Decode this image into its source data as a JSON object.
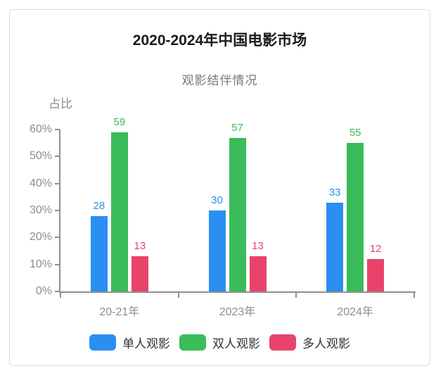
{
  "chart_data": {
    "type": "bar",
    "title": "2020-2024年中国电影市场",
    "subtitle": "观影结伴情况",
    "ylabel": "占比",
    "xlabel": "",
    "categories": [
      "20-21年",
      "2023年",
      "2024年"
    ],
    "series": [
      {
        "name": "单人观影",
        "color": "#2A8FF2",
        "values": [
          28,
          30,
          33
        ]
      },
      {
        "name": "双人观影",
        "color": "#39BC59",
        "values": [
          59,
          57,
          55
        ]
      },
      {
        "name": "多人观影",
        "color": "#E8436B",
        "values": [
          13,
          13,
          12
        ]
      }
    ],
    "ylim": [
      0,
      60
    ],
    "yticks": [
      "0%",
      "10%",
      "20%",
      "30%",
      "40%",
      "50%",
      "60%"
    ],
    "grid": false,
    "legend_position": "bottom",
    "value_labels": true
  },
  "colors": {
    "page_bg": "#ffffff",
    "card_bg": "#ffffff",
    "card_border": "#dddddd",
    "title": "#1a1a1a",
    "subtitle": "#75787c",
    "axis_line": "#8f8f8f",
    "axis_text": "#8a8e93",
    "legend_text": "#333333"
  }
}
